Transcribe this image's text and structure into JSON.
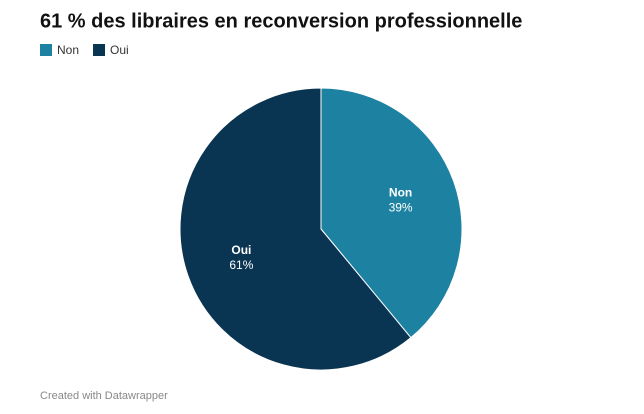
{
  "chart_data": {
    "type": "pie",
    "title": "61 % des libraires en reconversion professionnelle",
    "categories": [
      "Non",
      "Oui"
    ],
    "values": [
      39,
      61
    ],
    "value_labels": [
      "39%",
      "61%"
    ],
    "colors": [
      "#1d81a2",
      "#0a3552"
    ],
    "legend": "top-left",
    "credit": "Created with Datawrapper"
  }
}
